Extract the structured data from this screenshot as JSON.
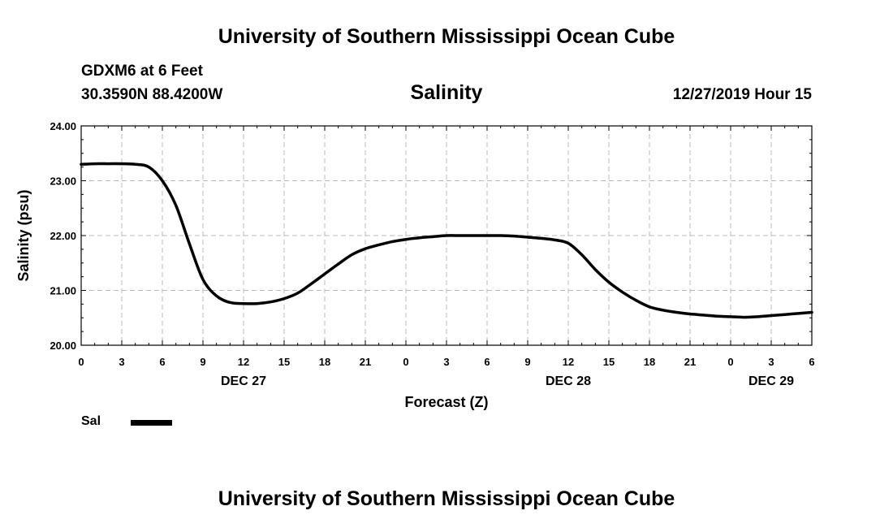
{
  "header": {
    "title": "University of Southern Mississippi Ocean Cube",
    "station": "GDXM6 at 6 Feet",
    "coordinates": "30.3590N 88.4200W",
    "variable_title": "Salinity",
    "timestamp": "12/27/2019 Hour 15"
  },
  "footer": {
    "title": "University of Southern Mississippi Ocean Cube"
  },
  "legend": {
    "label": "Sal",
    "color": "#000000"
  },
  "chart_data": {
    "type": "line",
    "title": "Salinity",
    "xlabel": "Forecast (Z)",
    "ylabel": "Salinity (psu)",
    "ylim": [
      20.0,
      24.0
    ],
    "yticks": [
      "20.00",
      "21.00",
      "22.00",
      "23.00",
      "24.00"
    ],
    "xlim": [
      0,
      54
    ],
    "xticks": [
      "0",
      "3",
      "6",
      "9",
      "12",
      "15",
      "18",
      "21",
      "0",
      "3",
      "6",
      "9",
      "12",
      "15",
      "18",
      "21",
      "0",
      "3",
      "6"
    ],
    "date_labels": [
      {
        "label": "DEC 27",
        "hour": 12
      },
      {
        "label": "DEC 28",
        "hour": 36
      },
      {
        "label": "DEC 29",
        "hour": 51
      }
    ],
    "grid": true,
    "legend_position": "bottom-left",
    "series": [
      {
        "name": "Sal",
        "color": "#000000",
        "x": [
          0,
          1,
          2,
          3,
          4,
          5,
          6,
          7,
          8,
          9,
          10,
          11,
          12,
          13,
          14,
          15,
          16,
          17,
          18,
          19,
          20,
          21,
          22,
          23,
          24,
          25,
          26,
          27,
          28,
          29,
          30,
          31,
          32,
          33,
          34,
          35,
          36,
          37,
          38,
          39,
          40,
          41,
          42,
          43,
          44,
          45,
          46,
          47,
          48,
          49,
          50,
          51,
          52,
          53,
          54
        ],
        "y": [
          23.3,
          23.31,
          23.31,
          23.31,
          23.3,
          23.25,
          23.0,
          22.55,
          21.85,
          21.2,
          20.9,
          20.78,
          20.76,
          20.76,
          20.79,
          20.85,
          20.95,
          21.12,
          21.3,
          21.48,
          21.65,
          21.76,
          21.83,
          21.89,
          21.93,
          21.96,
          21.98,
          22.0,
          22.0,
          22.0,
          22.0,
          22.0,
          21.99,
          21.97,
          21.95,
          21.92,
          21.86,
          21.65,
          21.38,
          21.15,
          20.97,
          20.82,
          20.7,
          20.64,
          20.6,
          20.57,
          20.55,
          20.53,
          20.52,
          20.51,
          20.52,
          20.54,
          20.56,
          20.58,
          20.6
        ]
      }
    ]
  }
}
